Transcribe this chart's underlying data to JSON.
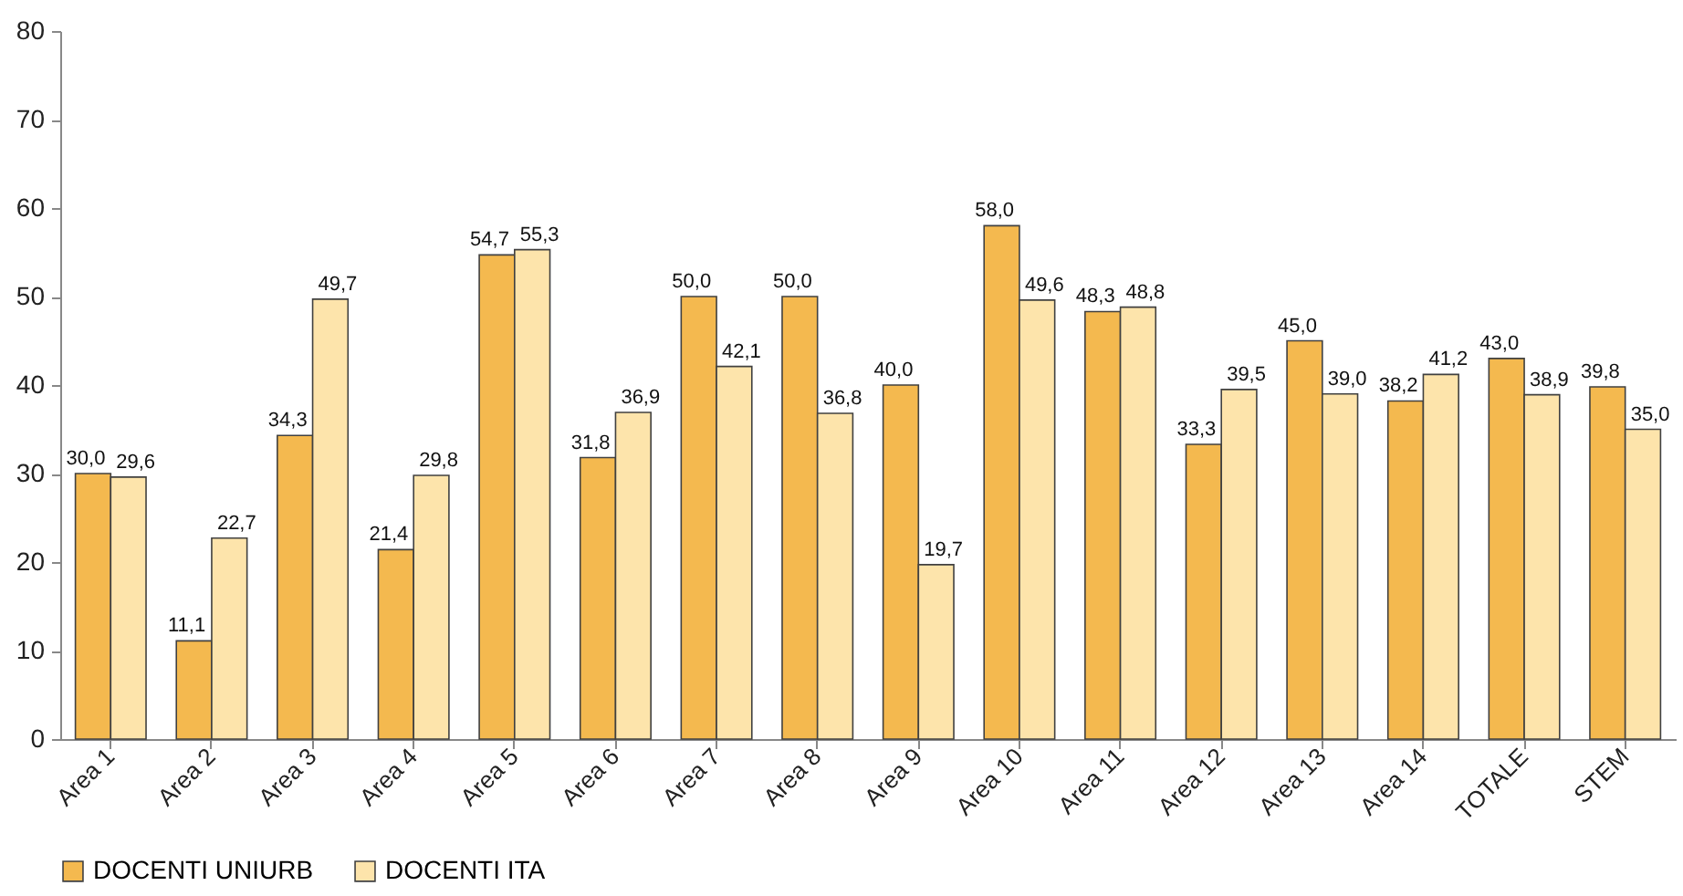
{
  "chart_data": {
    "type": "bar",
    "categories": [
      "Area 1",
      "Area 2",
      "Area 3",
      "Area 4",
      "Area 5",
      "Area 6",
      "Area 7",
      "Area 8",
      "Area 9",
      "Area 10",
      "Area 11",
      "Area 12",
      "Area 13",
      "Area 14",
      "TOTALE",
      "STEM"
    ],
    "series": [
      {
        "name": "DOCENTI UNIURB",
        "color": "#f4b94f",
        "values": [
          30.0,
          11.1,
          34.3,
          21.4,
          54.7,
          31.8,
          50.0,
          50.0,
          40.0,
          58.0,
          48.3,
          33.3,
          45.0,
          38.2,
          43.0,
          39.8
        ],
        "value_labels": [
          "30,0",
          "11,1",
          "34,3",
          "21,4",
          "54,7",
          "31,8",
          "50,0",
          "50,0",
          "40,0",
          "58,0",
          "48,3",
          "33,3",
          "45,0",
          "38,2",
          "43,0",
          "39,8"
        ]
      },
      {
        "name": "DOCENTI ITA",
        "color": "#fde4ab",
        "values": [
          29.6,
          22.7,
          49.7,
          29.8,
          55.3,
          36.9,
          42.1,
          36.8,
          19.7,
          49.6,
          48.8,
          39.5,
          39.0,
          41.2,
          38.9,
          35.0
        ],
        "value_labels": [
          "29,6",
          "22,7",
          "49,7",
          "29,8",
          "55,3",
          "36,9",
          "42,1",
          "36,8",
          "19,7",
          "49,6",
          "48,8",
          "39,5",
          "39,0",
          "41,2",
          "38,9",
          "35,0"
        ]
      }
    ],
    "ylim": [
      0,
      80
    ],
    "yticks": [
      0,
      10,
      20,
      30,
      40,
      50,
      60,
      70,
      80
    ],
    "grid": false,
    "legend": "bottom"
  }
}
